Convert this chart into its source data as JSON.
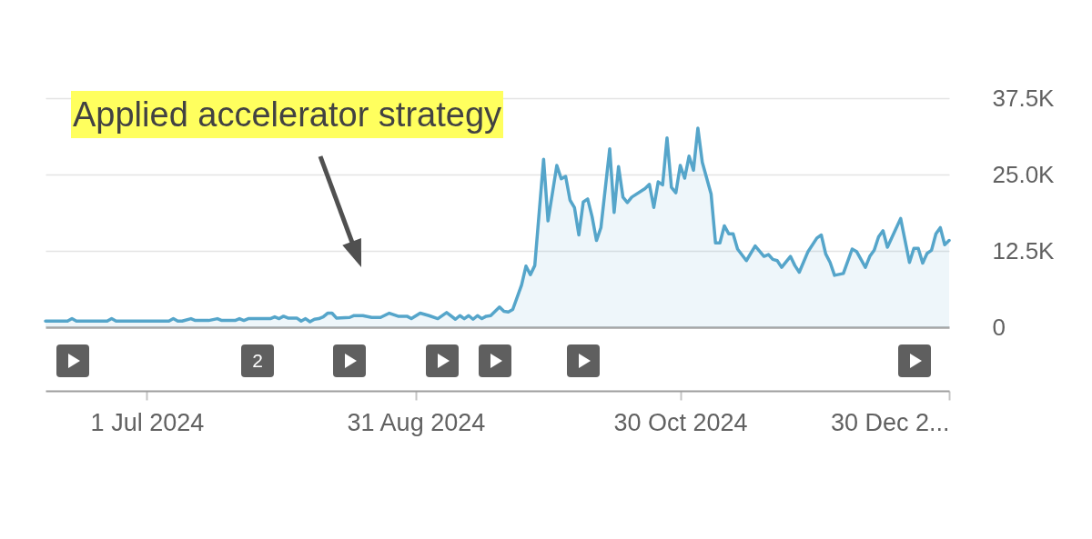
{
  "chart_data": {
    "type": "area",
    "color": "#55a5ca",
    "grid": "y",
    "xlim": [
      "2024-06-08",
      "2024-12-30"
    ],
    "xticks": [
      {
        "value": "2024-07-01",
        "label": "1 Jul 2024"
      },
      {
        "value": "2024-08-31",
        "label": "31 Aug 2024"
      },
      {
        "value": "2024-10-30",
        "label": "30 Oct 2024"
      },
      {
        "value": "2024-12-30",
        "label": "30 Dec 2..."
      }
    ],
    "ylim": [
      0,
      37500
    ],
    "yticks": [
      0,
      {
        "value": 12500,
        "label": "12.5K"
      },
      {
        "value": 25000,
        "label": "25.0K"
      },
      {
        "value": 37500,
        "label": "37.5K"
      }
    ],
    "annotations": [
      "Applied accelerator strategy",
      "2"
    ],
    "x": [
      "2024-06-08",
      "2024-06-13",
      "2024-06-14",
      "2024-06-15",
      "2024-06-22",
      "2024-06-23",
      "2024-06-24",
      "2024-07-06",
      "2024-07-07",
      "2024-07-08",
      "2024-07-09",
      "2024-07-11",
      "2024-07-12",
      "2024-07-15",
      "2024-07-17",
      "2024-07-18",
      "2024-07-21",
      "2024-07-22",
      "2024-07-23",
      "2024-07-24",
      "2024-07-29",
      "2024-07-30",
      "2024-07-31",
      "2024-08-01",
      "2024-08-02",
      "2024-08-04",
      "2024-08-05",
      "2024-08-06",
      "2024-08-07",
      "2024-08-08",
      "2024-08-09",
      "2024-08-10",
      "2024-08-11",
      "2024-08-12",
      "2024-08-13",
      "2024-08-16",
      "2024-08-17",
      "2024-08-19",
      "2024-08-21",
      "2024-08-23",
      "2024-08-25",
      "2024-08-27",
      "2024-08-29",
      "2024-08-30",
      "2024-09-01",
      "2024-09-03",
      "2024-09-05",
      "2024-09-07",
      "2024-09-09",
      "2024-09-10",
      "2024-09-11",
      "2024-09-12",
      "2024-09-13",
      "2024-09-14",
      "2024-09-15",
      "2024-09-16",
      "2024-09-17",
      "2024-09-19",
      "2024-09-20",
      "2024-09-21",
      "2024-09-22",
      "2024-09-24",
      "2024-09-25",
      "2024-09-26",
      "2024-09-27",
      "2024-09-29",
      "2024-09-30",
      "2024-10-02",
      "2024-10-03",
      "2024-10-04",
      "2024-10-05",
      "2024-10-06",
      "2024-10-07",
      "2024-10-08",
      "2024-10-09",
      "2024-10-10",
      "2024-10-11",
      "2024-10-12",
      "2024-10-14",
      "2024-10-15",
      "2024-10-16",
      "2024-10-17",
      "2024-10-18",
      "2024-10-19",
      "2024-10-22",
      "2024-10-23",
      "2024-10-24",
      "2024-10-25",
      "2024-10-26",
      "2024-10-27",
      "2024-10-28",
      "2024-10-29",
      "2024-10-30",
      "2024-10-31",
      "2024-11-01",
      "2024-11-02",
      "2024-11-03",
      "2024-11-04",
      "2024-11-06",
      "2024-11-07",
      "2024-11-08",
      "2024-11-09",
      "2024-11-10",
      "2024-11-11",
      "2024-11-12",
      "2024-11-14",
      "2024-11-16",
      "2024-11-18",
      "2024-11-19",
      "2024-11-20",
      "2024-11-21",
      "2024-11-22",
      "2024-11-24",
      "2024-11-25",
      "2024-11-26",
      "2024-11-28",
      "2024-11-30",
      "2024-12-01",
      "2024-12-02",
      "2024-12-03",
      "2024-12-04",
      "2024-12-06",
      "2024-12-08",
      "2024-12-09",
      "2024-12-11",
      "2024-12-12",
      "2024-12-13",
      "2024-12-14",
      "2024-12-15",
      "2024-12-16",
      "2024-12-19",
      "2024-12-21",
      "2024-12-22",
      "2024-12-23",
      "2024-12-24",
      "2024-12-25",
      "2024-12-26",
      "2024-12-27",
      "2024-12-28",
      "2024-12-29",
      "2024-12-30"
    ],
    "values": [
      1000,
      1000,
      1400,
      1000,
      1000,
      1400,
      1000,
      1000,
      1400,
      1000,
      1000,
      1400,
      1100,
      1100,
      1400,
      1100,
      1100,
      1400,
      1100,
      1400,
      1400,
      1700,
      1400,
      1800,
      1500,
      1500,
      1000,
      1400,
      900,
      1300,
      1400,
      1700,
      2300,
      2300,
      1500,
      1600,
      1900,
      1900,
      1600,
      1600,
      2300,
      1800,
      1800,
      1400,
      2300,
      1900,
      1400,
      2400,
      1300,
      1900,
      1400,
      1900,
      1300,
      1900,
      1400,
      1800,
      1900,
      3300,
      2600,
      2500,
      2900,
      6900,
      10000,
      8600,
      10100,
      27500,
      17400,
      26500,
      24300,
      24700,
      20800,
      19600,
      15100,
      20500,
      21000,
      18100,
      14200,
      16300,
      29200,
      18800,
      26300,
      21300,
      20400,
      21300,
      22700,
      23400,
      19600,
      23800,
      23300,
      31000,
      22900,
      22000,
      26500,
      24400,
      28000,
      25700,
      32600,
      27000,
      21800,
      13800,
      13800,
      16600,
      15300,
      15300,
      12800,
      10900,
      13300,
      11600,
      11900,
      11100,
      10900,
      9800,
      11600,
      10100,
      9000,
      12400,
      14600,
      15100,
      12000,
      10600,
      8500,
      8800,
      12800,
      12400,
      9800,
      11600,
      12600,
      14800,
      15800,
      13100,
      17800,
      10600,
      12900,
      12900,
      10500,
      12100,
      12600,
      15300,
      16300,
      13500,
      14200
    ]
  }
}
